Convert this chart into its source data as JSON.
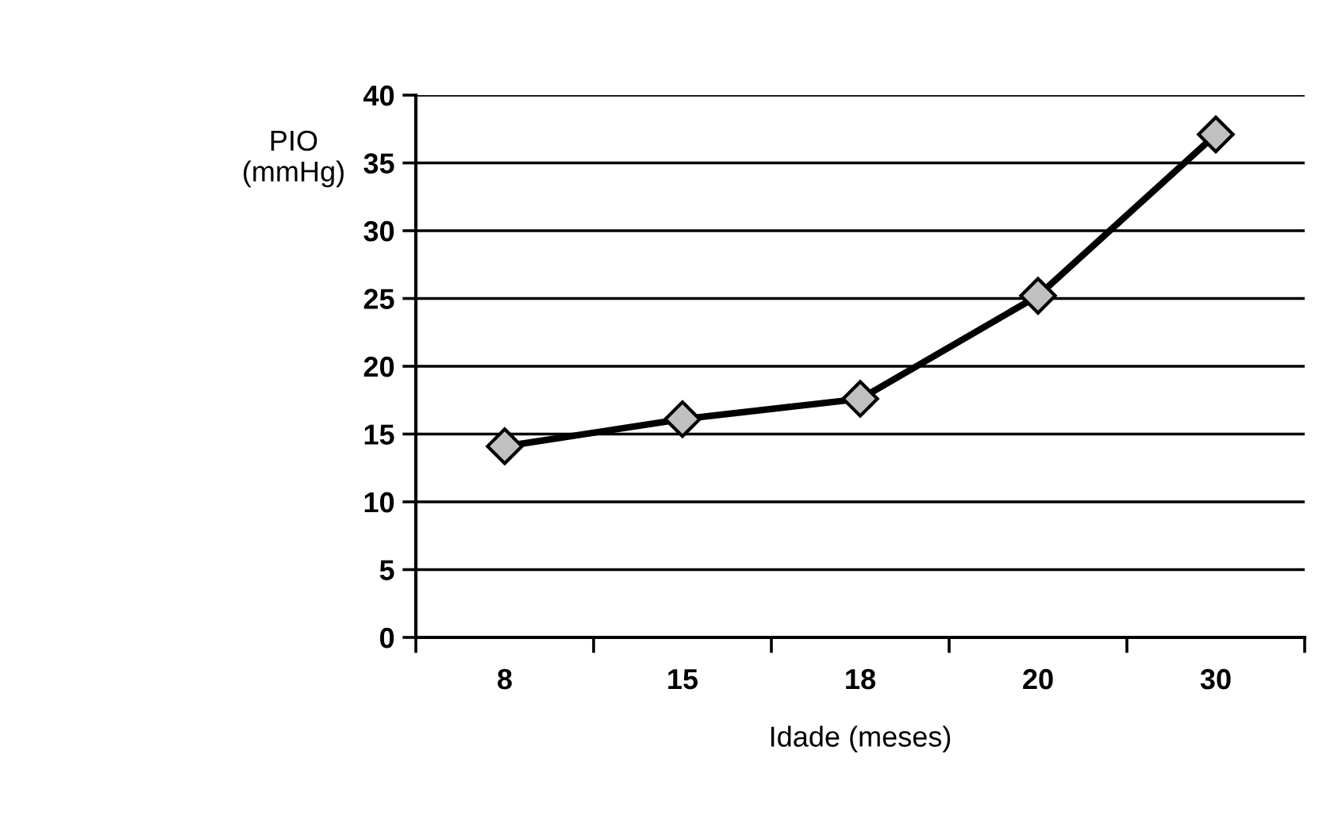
{
  "chart_data": {
    "type": "line",
    "ylabel": "PIO\n(mmHg)",
    "xlabel": "Idade (meses)",
    "categories": [
      "8",
      "15",
      "18",
      "20",
      "30"
    ],
    "series": [
      {
        "color": "#000000",
        "values": [
          14.1,
          16.1,
          17.6,
          25.2,
          37.1
        ]
      }
    ],
    "ylim": [
      0,
      40
    ],
    "yticks": [
      0,
      5,
      10,
      15,
      20,
      25,
      30,
      35,
      40
    ],
    "grid": "y",
    "marker": "diamond",
    "line_style": "solid"
  }
}
